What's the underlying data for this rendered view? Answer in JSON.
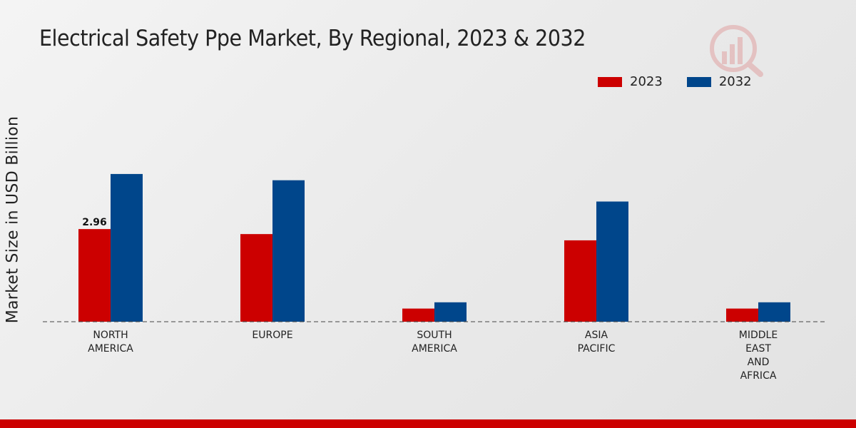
{
  "chart_data": {
    "type": "bar",
    "title": "Electrical Safety Ppe Market, By Regional, 2023 & 2032",
    "xlabel": "",
    "ylabel": "Market Size in USD Billion",
    "categories": [
      [
        "NORTH",
        "AMERICA"
      ],
      [
        "EUROPE"
      ],
      [
        "SOUTH",
        "AMERICA"
      ],
      [
        "ASIA",
        "PACIFIC"
      ],
      [
        "MIDDLE",
        "EAST",
        "AND",
        "AFRICA"
      ]
    ],
    "series": [
      {
        "name": "2023",
        "color": "#cc0000",
        "values": [
          2.96,
          2.8,
          0.42,
          2.6,
          0.42
        ]
      },
      {
        "name": "2032",
        "color": "#00468b",
        "values": [
          4.72,
          4.52,
          0.62,
          3.84,
          0.62
        ]
      }
    ],
    "data_labels": [
      {
        "series": 0,
        "index": 0,
        "text": "2.96"
      }
    ],
    "ylim": [
      0,
      8
    ],
    "grid": false,
    "legend_position": "top-right"
  }
}
